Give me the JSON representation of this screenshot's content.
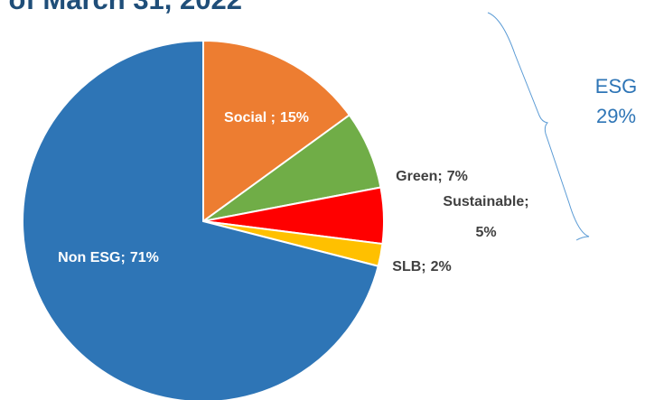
{
  "chart_data": {
    "type": "pie",
    "title": "of March 31, 2022",
    "categories": [
      "Social ;",
      "Green;",
      "Sustainable;",
      "SLB;",
      "Non ESG;"
    ],
    "values": [
      15,
      7,
      5,
      2,
      71
    ],
    "value_labels": [
      "15%",
      "7%",
      "5%",
      "2%",
      "71%"
    ],
    "colors": [
      "#ED7D31",
      "#70AD47",
      "#FF0000",
      "#FFC000",
      "#2E75B6"
    ],
    "annotation": [
      "ESG",
      "29%"
    ]
  }
}
